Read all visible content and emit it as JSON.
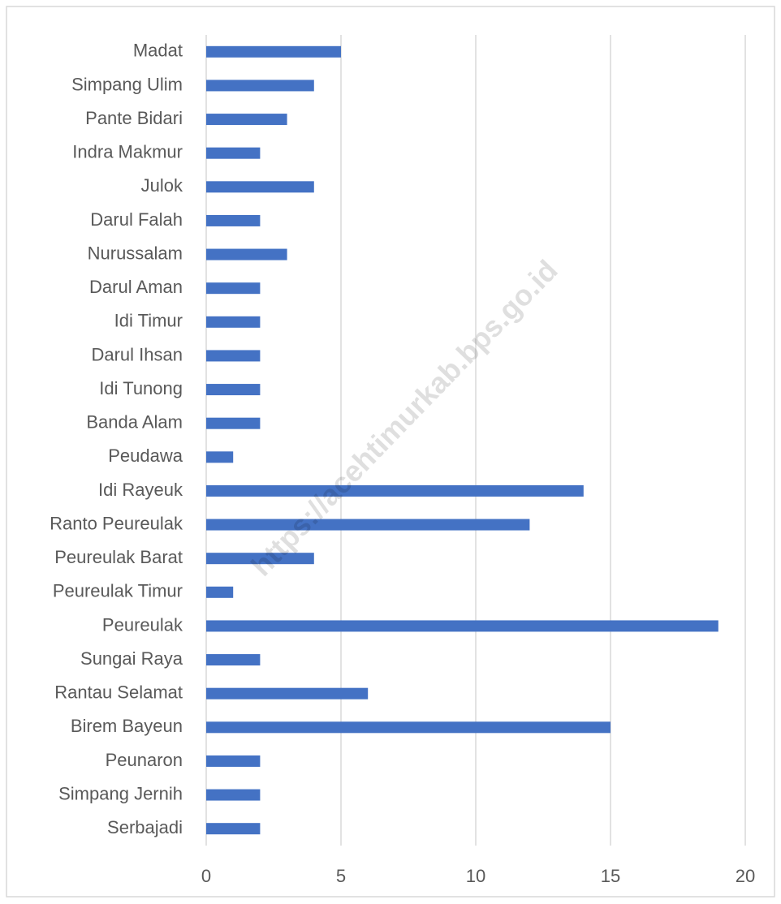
{
  "chart_data": {
    "type": "bar",
    "orientation": "horizontal",
    "watermark": "https://acehtimurkab.bps.go.id",
    "categories": [
      "Madat",
      "Simpang Ulim",
      "Pante Bidari",
      "Indra Makmur",
      "Julok",
      "Darul Falah",
      "Nurussalam",
      "Darul Aman",
      "Idi Timur",
      "Darul Ihsan",
      "Idi Tunong",
      "Banda Alam",
      "Peudawa",
      "Idi Rayeuk",
      "Ranto Peureulak",
      "Peureulak Barat",
      "Peureulak Timur",
      "Peureulak",
      "Sungai Raya",
      "Rantau Selamat",
      "Birem Bayeun",
      "Peunaron",
      "Simpang Jernih",
      "Serbajadi"
    ],
    "values": [
      5,
      4,
      3,
      2,
      4,
      2,
      3,
      2,
      2,
      2,
      2,
      2,
      1,
      14,
      12,
      4,
      1,
      19,
      2,
      6,
      15,
      2,
      2,
      2
    ],
    "color": "#4472c4",
    "xlim": [
      0,
      20
    ],
    "xticks": [
      0,
      5,
      10,
      15,
      20
    ],
    "grid": true
  }
}
